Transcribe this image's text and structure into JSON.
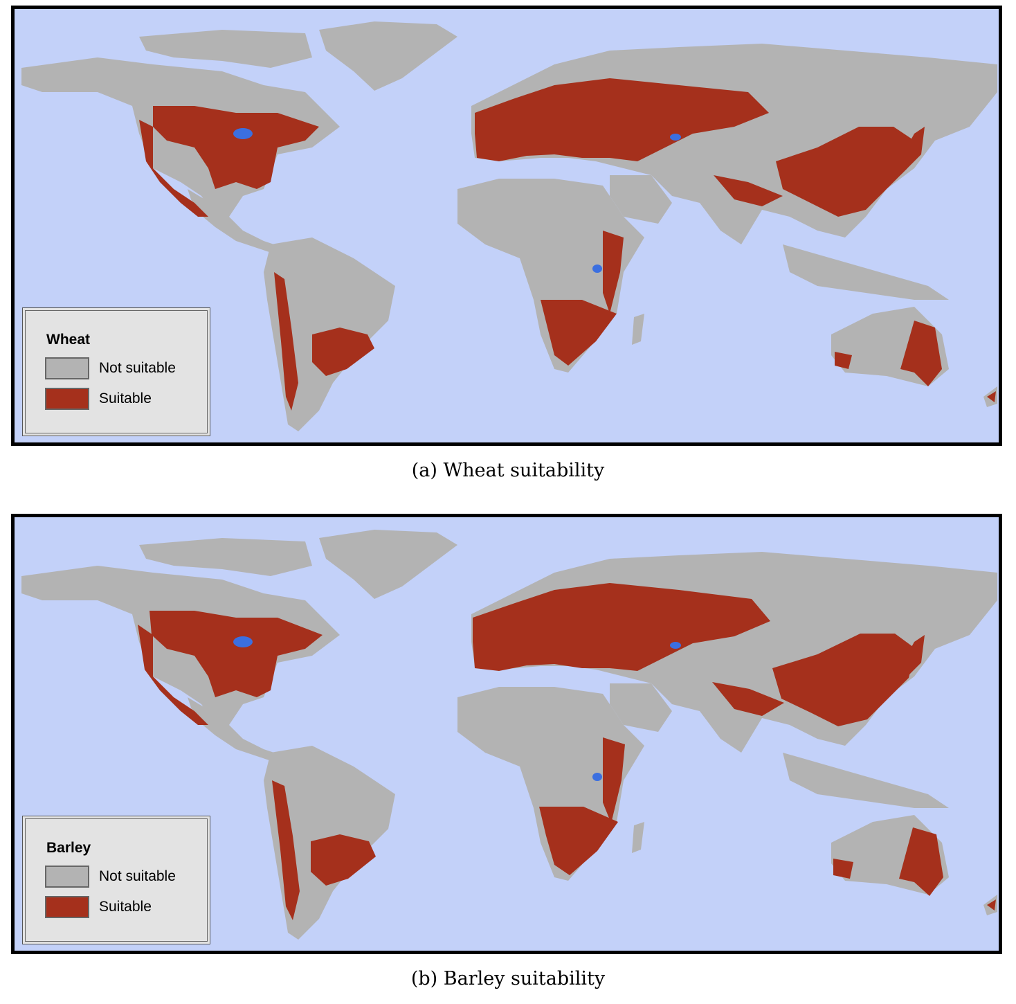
{
  "colors": {
    "ocean": "#c3d1f9",
    "land": "#b3b3b3",
    "suitable": "#a5301c",
    "water": "#3b6fe0"
  },
  "maps": [
    {
      "legend_title": "Wheat",
      "legend_items": [
        {
          "label": "Not suitable",
          "color": "#b3b3b3"
        },
        {
          "label": "Suitable",
          "color": "#a5301c"
        }
      ],
      "caption": "(a) Wheat suitability"
    },
    {
      "legend_title": "Barley",
      "legend_items": [
        {
          "label": "Not suitable",
          "color": "#b3b3b3"
        },
        {
          "label": "Suitable",
          "color": "#a5301c"
        }
      ],
      "caption": "(b) Barley suitability"
    }
  ]
}
